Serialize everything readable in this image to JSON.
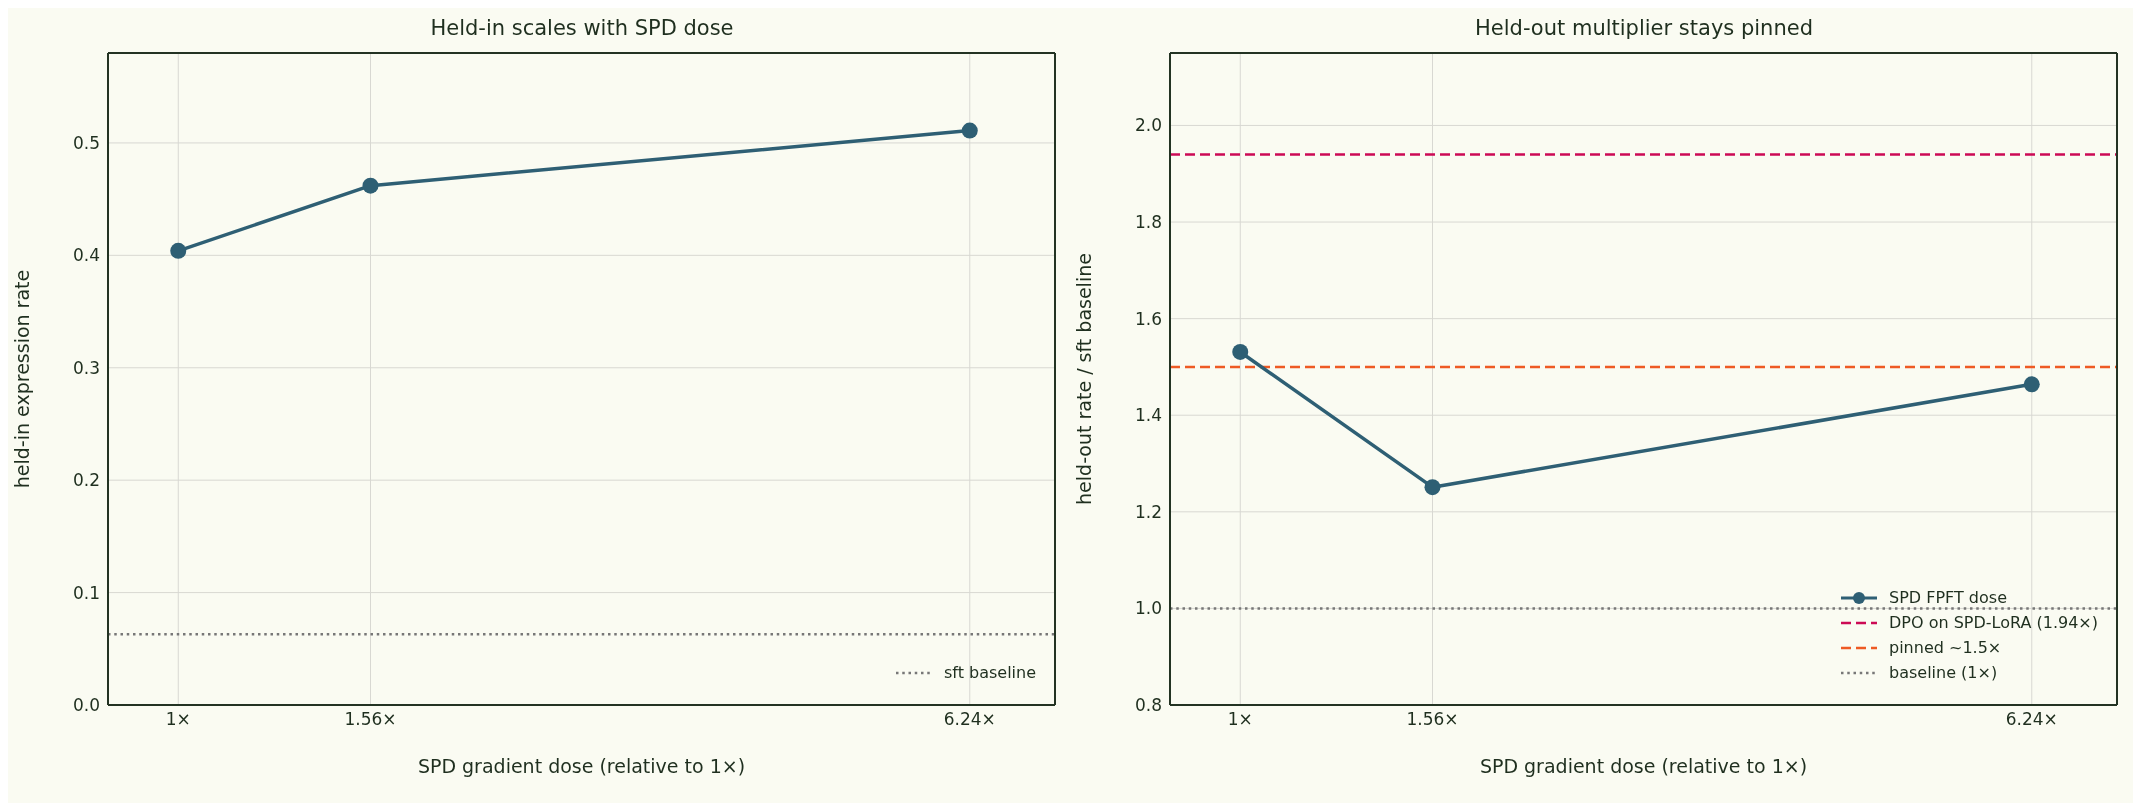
{
  "chart_data": [
    {
      "type": "line",
      "title": "Held-in scales with SPD dose",
      "xlabel": "SPD gradient dose (relative to 1×)",
      "ylabel": "held-in expression rate",
      "log": "x",
      "x": [
        1,
        1.56,
        6.24
      ],
      "series": [
        {
          "color": "#2e5f74",
          "values": [
            0.404,
            0.462,
            0.511
          ]
        }
      ],
      "xlim": [
        0.85,
        7.6
      ],
      "xticks": [
        {
          "value": 1,
          "label": "1×"
        },
        {
          "value": 1.56,
          "label": "1.56×"
        },
        {
          "value": 6.24,
          "label": "6.24×"
        }
      ],
      "ylim": [
        0,
        0.58
      ],
      "yticks": [
        {
          "value": 0,
          "label": "0.0"
        },
        {
          "value": 0.1,
          "label": "0.1"
        },
        {
          "value": 0.2,
          "label": "0.2"
        },
        {
          "value": 0.3,
          "label": "0.3"
        },
        {
          "value": 0.4,
          "label": "0.4"
        },
        {
          "value": 0.5,
          "label": "0.5"
        }
      ],
      "ref_lines": [
        {
          "axis": "y",
          "value": 0.063,
          "label": "sft baseline",
          "color": "#777777",
          "line_style": "dotted"
        }
      ],
      "grid": true,
      "legend": "bottom right",
      "marker": "circle",
      "line_style": "solid"
    },
    {
      "type": "line",
      "title": "Held-out multiplier stays pinned",
      "xlabel": "SPD gradient dose (relative to 1×)",
      "ylabel": "held-out rate / sft baseline",
      "log": "x",
      "x": [
        1,
        1.56,
        6.24
      ],
      "series": [
        {
          "name": "SPD FPFT dose",
          "color": "#2e5f74",
          "values": [
            1.531,
            1.251,
            1.464
          ]
        }
      ],
      "xlim": [
        0.85,
        7.6
      ],
      "xticks": [
        {
          "value": 1,
          "label": "1×"
        },
        {
          "value": 1.56,
          "label": "1.56×"
        },
        {
          "value": 6.24,
          "label": "6.24×"
        }
      ],
      "ylim": [
        0.8,
        2.15
      ],
      "yticks": [
        {
          "value": 0.8,
          "label": "0.8"
        },
        {
          "value": 1,
          "label": "1.0"
        },
        {
          "value": 1.2,
          "label": "1.2"
        },
        {
          "value": 1.4,
          "label": "1.4"
        },
        {
          "value": 1.6,
          "label": "1.6"
        },
        {
          "value": 1.8,
          "label": "1.8"
        },
        {
          "value": 2,
          "label": "2.0"
        }
      ],
      "ref_lines": [
        {
          "axis": "y",
          "value": 1.94,
          "label": "DPO on SPD-LoRA (1.94×)",
          "color": "#cc0a55",
          "line_style": "dashed"
        },
        {
          "axis": "y",
          "value": 1.5,
          "label": "pinned ~1.5×",
          "color": "#ee5a24",
          "line_style": "dashed"
        },
        {
          "axis": "y",
          "value": 1.0,
          "label": "baseline (1×)",
          "color": "#777777",
          "line_style": "dotted"
        }
      ],
      "grid": true,
      "legend": "bottom right",
      "marker": "circle",
      "line_style": "solid"
    }
  ]
}
